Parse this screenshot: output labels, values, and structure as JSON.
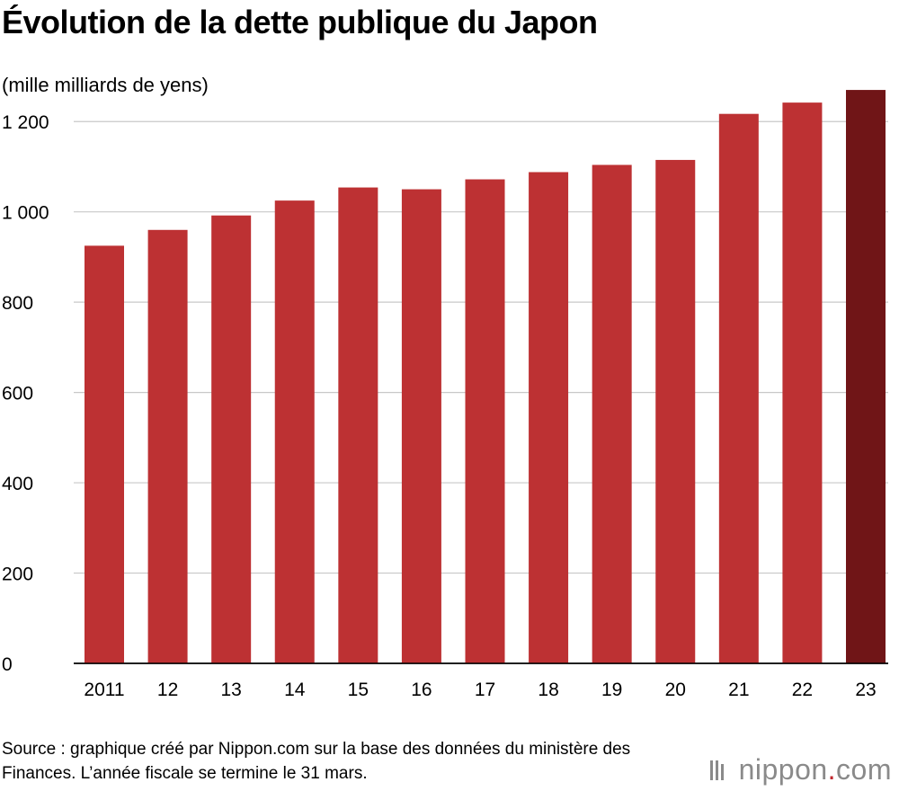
{
  "chart_data": {
    "type": "bar",
    "title": "Évolution de la dette publique du Japon",
    "ylabel": "(mille milliards de yens)",
    "xlabel": "",
    "categories": [
      "2011",
      "12",
      "13",
      "14",
      "15",
      "16",
      "17",
      "18",
      "19",
      "20",
      "21",
      "22",
      "23"
    ],
    "values": [
      925,
      960,
      992,
      1025,
      1054,
      1050,
      1072,
      1088,
      1104,
      1115,
      1217,
      1242,
      1270
    ],
    "ylim": [
      0,
      1300
    ],
    "yticks": [
      0,
      200,
      400,
      600,
      800,
      1000,
      1200
    ],
    "ytick_labels": [
      "0",
      "200",
      "400",
      "600",
      "800",
      "1 000",
      "1 200"
    ],
    "grid": true,
    "legend": "none",
    "colors": {
      "bar": "#bd3133",
      "highlight": "#701517",
      "grid": "#c8c8c8"
    },
    "highlight_index": 12
  },
  "source": "Source : graphique créé par Nippon.com sur la base des données du ministère des Finances. L’année fiscale se termine le 31 mars.",
  "brand": {
    "name": "nippon",
    "dot": ".",
    "tld": "com"
  }
}
